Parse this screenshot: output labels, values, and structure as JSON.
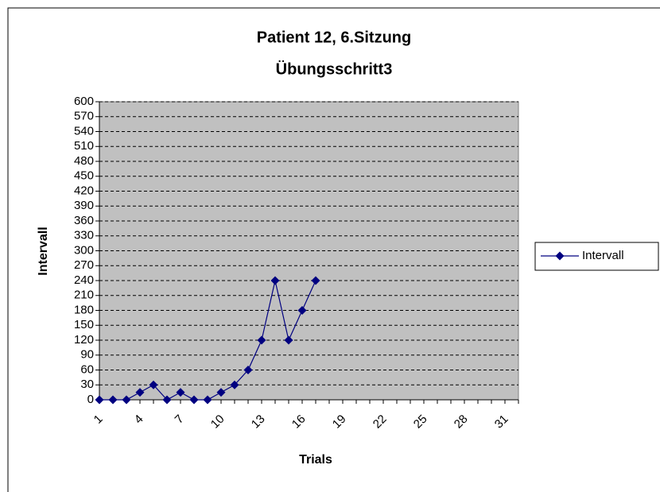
{
  "chart_data": {
    "type": "line",
    "title": "Patient 12, 6.Sitzung",
    "subtitle": "Übungsschritt3",
    "x_label": "Trials",
    "y_label": "Intervall",
    "categories": [
      1,
      null,
      null,
      4,
      null,
      null,
      7,
      null,
      null,
      10,
      null,
      null,
      13,
      null,
      null,
      16,
      null,
      null,
      19,
      null,
      null,
      22,
      null,
      null,
      25,
      null,
      null,
      28,
      null,
      null,
      31,
      null
    ],
    "series": [
      {
        "name": "Intervall",
        "color": "#000080",
        "values": [
          0,
          0,
          0,
          15,
          30,
          0,
          15,
          0,
          0,
          15,
          30,
          60,
          120,
          240,
          120,
          180,
          240,
          null,
          null,
          null,
          null,
          null,
          null,
          null,
          null,
          null,
          null,
          null,
          null,
          null,
          null,
          null
        ]
      }
    ],
    "ylim": [
      0,
      600
    ],
    "yticks": [
      0,
      30,
      60,
      90,
      120,
      150,
      180,
      210,
      240,
      270,
      300,
      330,
      360,
      390,
      420,
      450,
      480,
      510,
      540,
      570,
      600
    ],
    "grid": true,
    "grid_style": "dashed",
    "plot_background": "#c0c0c0",
    "legend": "right"
  }
}
